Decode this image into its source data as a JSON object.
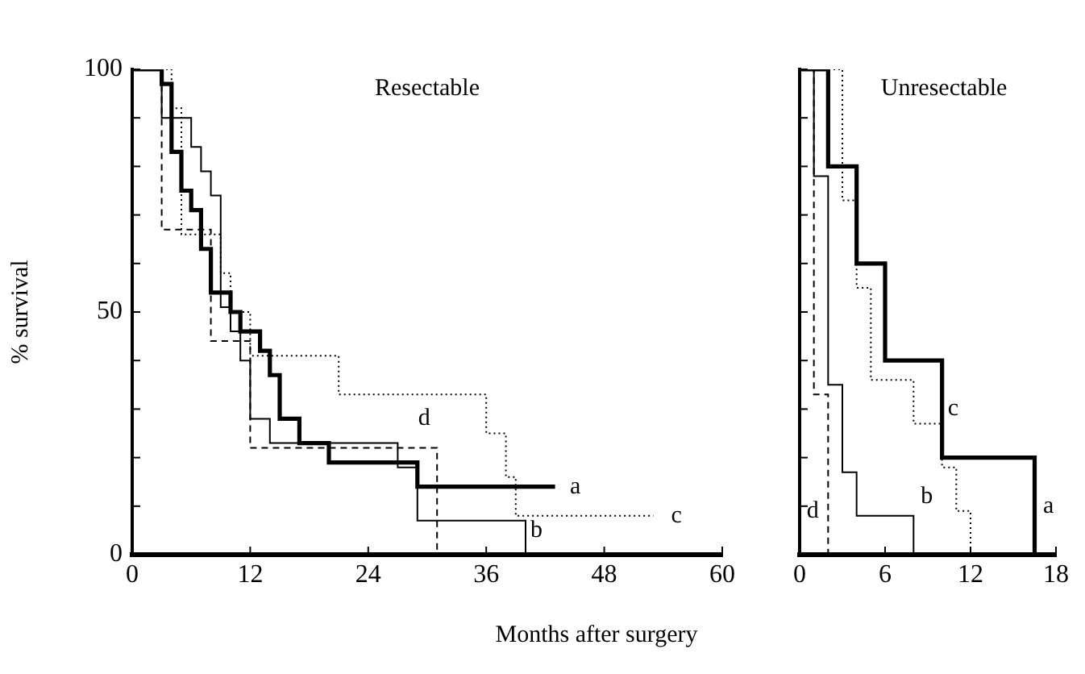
{
  "chart_data": [
    {
      "type": "step",
      "title": "Resectable",
      "xlabel": "Months after surgery",
      "ylabel": "% survival",
      "xlim": [
        0,
        60
      ],
      "xticks": [
        0,
        12,
        24,
        36,
        48,
        60
      ],
      "ylim": [
        0,
        100
      ],
      "yticks": [
        0,
        {
          "value": 10,
          "label": null
        },
        {
          "value": 20,
          "label": null
        },
        {
          "value": 30,
          "label": null
        },
        {
          "value": 40,
          "label": null
        },
        50,
        {
          "value": 60,
          "label": null
        },
        {
          "value": 70,
          "label": null
        },
        {
          "value": 80,
          "label": null
        },
        {
          "value": 90,
          "label": null
        },
        100
      ],
      "grid": false,
      "legend": false,
      "marker": "none",
      "series": [
        {
          "name": "a",
          "color": "#000000",
          "line_style": "solid",
          "x": [
            0,
            3,
            4,
            5,
            6,
            7,
            8,
            10,
            11,
            13,
            14,
            15,
            17,
            20,
            29,
            43
          ],
          "values": [
            100,
            97,
            83,
            75,
            71,
            63,
            54,
            50,
            46,
            42,
            37,
            28,
            23,
            19,
            14,
            14
          ]
        },
        {
          "name": "b",
          "color": "#000000",
          "line_style": "solid",
          "x": [
            0,
            3,
            6,
            7,
            8,
            9,
            10,
            11,
            12,
            14,
            27,
            29,
            40
          ],
          "values": [
            100,
            90,
            84,
            79,
            74,
            51,
            46,
            40,
            28,
            23,
            18,
            7,
            0
          ]
        },
        {
          "name": "c",
          "color": "#000000",
          "line_style": "dotted",
          "x": [
            0,
            4,
            5,
            9,
            10,
            12,
            21,
            36,
            38,
            39,
            53
          ],
          "values": [
            100,
            92,
            66,
            58,
            50,
            41,
            33,
            25,
            16,
            8,
            8
          ]
        },
        {
          "name": "d",
          "color": "#000000",
          "line_style": "dashed",
          "x": [
            0,
            3,
            8,
            12,
            31,
            31
          ],
          "values": [
            100,
            67,
            44,
            22,
            22,
            0
          ]
        }
      ]
    },
    {
      "type": "step",
      "title": "Unresectable",
      "xlim": [
        0,
        18
      ],
      "xticks": [
        0,
        6,
        12,
        18
      ],
      "ylim": [
        0,
        100
      ],
      "yticks": [
        0,
        {
          "value": 10,
          "label": null
        },
        {
          "value": 20,
          "label": null
        },
        {
          "value": 30,
          "label": null
        },
        {
          "value": 40,
          "label": null
        },
        {
          "value": 50,
          "label": null
        },
        {
          "value": 60,
          "label": null
        },
        {
          "value": 70,
          "label": null
        },
        {
          "value": 80,
          "label": null
        },
        {
          "value": 90,
          "label": null
        },
        {
          "value": 100,
          "label": null
        }
      ],
      "tick_labels": "x",
      "grid": false,
      "legend": false,
      "marker": "none",
      "series": [
        {
          "name": "a",
          "color": "#000000",
          "line_style": "solid",
          "x": [
            0,
            2,
            4,
            6,
            10,
            16.5
          ],
          "values": [
            100,
            80,
            60,
            40,
            20,
            0
          ]
        },
        {
          "name": "b",
          "color": "#000000",
          "line_style": "solid",
          "x": [
            0,
            1,
            2,
            3,
            4,
            8
          ],
          "values": [
            100,
            78,
            35,
            17,
            8,
            0
          ]
        },
        {
          "name": "c",
          "color": "#000000",
          "line_style": "dotted",
          "x": [
            0,
            3,
            4,
            5,
            8,
            10,
            11,
            12
          ],
          "values": [
            100,
            73,
            55,
            36,
            27,
            18,
            9,
            0
          ]
        },
        {
          "name": "d",
          "color": "#000000",
          "line_style": "dashed",
          "x": [
            0,
            1,
            2
          ],
          "values": [
            100,
            33,
            0
          ]
        }
      ]
    }
  ]
}
